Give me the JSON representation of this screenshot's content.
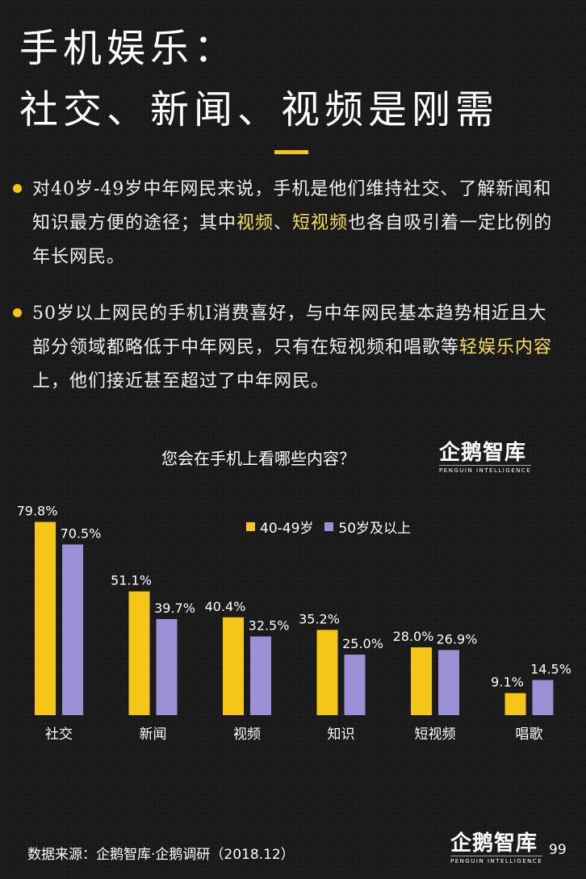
{
  "header": {
    "title_line1": "手机娱乐：",
    "title_line2": "社交、新闻、视频是刚需"
  },
  "bullets": [
    {
      "before": "对40岁-49岁中年网民来说，手机是他们维持社交、了解新闻和知识最方便的途径；其中",
      "hl1": "视频",
      "mid": "、",
      "hl2": "短视频",
      "after": "也各自吸引着一定比例的年长网民。"
    },
    {
      "before": "50岁以上网民的手机I消费喜好，与中年网民基本趋势相近且大部分领域都略低于中年网民，只有在短视频和唱歌等",
      "hl1": "轻娱乐内容",
      "after": "上，他们接近甚至超过了中年网民。"
    }
  ],
  "chart_header": {
    "title": "您会在手机上看哪些内容？"
  },
  "logo": {
    "cn": "企鹅智库",
    "en": "PENGUIN INTELLIGENCE"
  },
  "colors": {
    "accent": "#f5c518",
    "series_a": "#f5c518",
    "series_b": "#9b8fd6",
    "highlight_text": "#f5e052"
  },
  "chart_data": {
    "type": "bar",
    "title": "您会在手机上看哪些内容？",
    "categories": [
      "社交",
      "新闻",
      "视频",
      "知识",
      "短视频",
      "唱歌"
    ],
    "series": [
      {
        "name": "40-49岁",
        "values": [
          79.8,
          51.1,
          40.4,
          35.2,
          28.0,
          9.1
        ],
        "labels": [
          "79.8%",
          "51.1%",
          "40.4%",
          "35.2%",
          "28.0%",
          "9.1%"
        ]
      },
      {
        "name": "50岁及以上",
        "values": [
          70.5,
          39.7,
          32.5,
          25.0,
          26.9,
          14.5
        ],
        "labels": [
          "70.5%",
          "39.7%",
          "32.5%",
          "25.0%",
          "26.9%",
          "14.5%"
        ]
      }
    ],
    "ylim": [
      0,
      85
    ],
    "legend": "top-right",
    "grid": false
  },
  "footer": {
    "source": "数据来源：企鹅智库·企鹅调研（2018.12）",
    "page": "99"
  }
}
